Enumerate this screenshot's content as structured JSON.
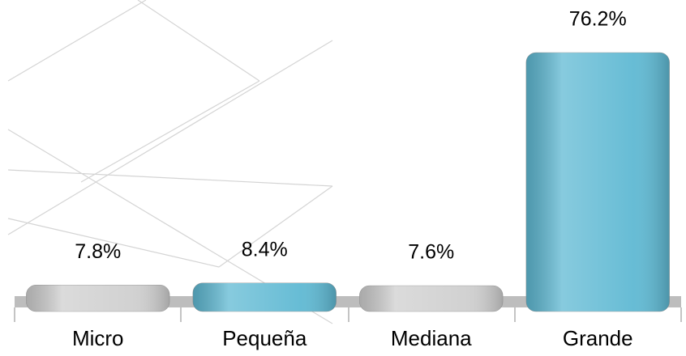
{
  "chart_data": {
    "type": "bar",
    "categories": [
      "Micro",
      "Pequeña",
      "Mediana",
      "Grande"
    ],
    "values": [
      7.8,
      8.4,
      7.6,
      76.2
    ],
    "value_labels": [
      "7.8%",
      "8.4%",
      "7.6%",
      "76.2%"
    ],
    "colors": [
      "#cfcfcf",
      "#5fb9d3",
      "#cfcfcf",
      "#5fb9d3"
    ]
  }
}
